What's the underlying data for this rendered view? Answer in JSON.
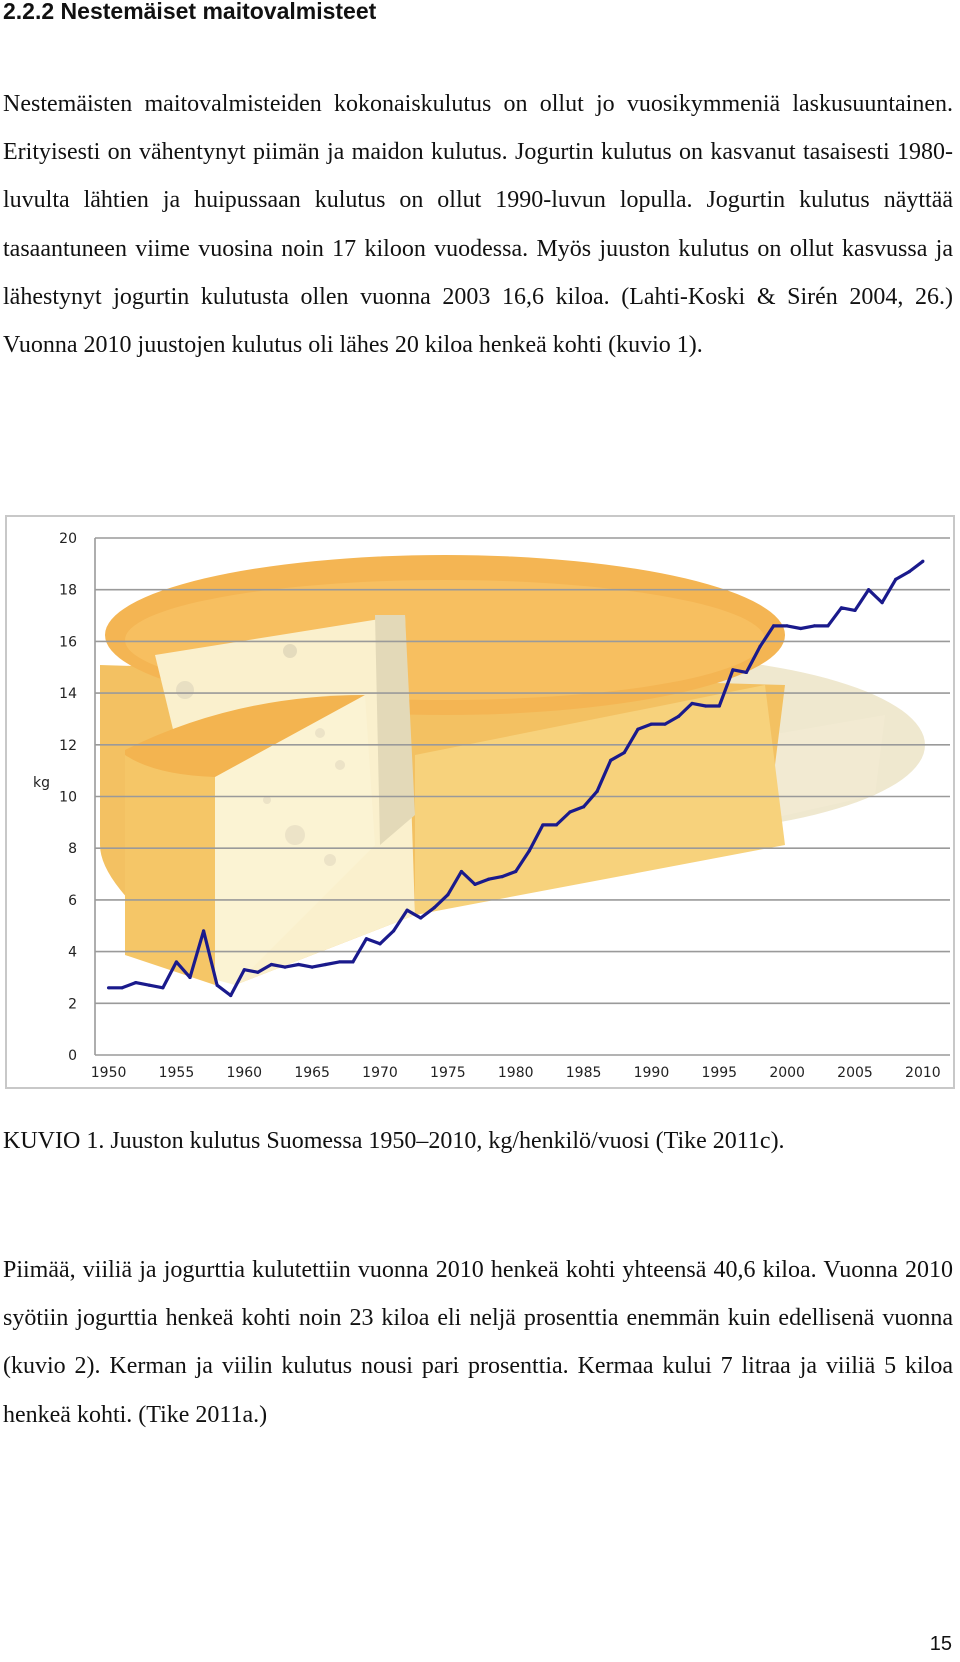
{
  "heading": "2.2.2 Nestemäiset maitovalmisteet",
  "paragraph1": "Nestemäisten maitovalmisteiden kokonaiskulutus on ollut jo vuosikymmeniä laskusuuntainen. Erityisesti on vähentynyt piimän ja maidon kulutus. Jogurtin kulutus on kasvanut tasaisesti 1980-luvulta lähtien ja huipussaan kulutus on ollut 1990-luvun lopulla. Jogurtin kulutus näyttää tasaantuneen viime vuosina noin 17 kiloon vuodessa. Myös juuston kulutus on ollut kasvussa ja lähestynyt jogurtin kulutusta ollen vuonna 2003 16,6 kiloa. (Lahti-Koski & Sirén 2004, 26.) Vuonna 2010 juustojen kulutus oli lähes 20 kiloa henkeä kohti (kuvio 1).",
  "caption": "KUVIO 1. Juuston kulutus Suomessa 1950–2010, kg/henkilö/vuosi (Tike 2011c).",
  "paragraph2": "Piimää, viiliä ja jogurttia kulutettiin vuonna 2010 henkeä kohti yhteensä 40,6 kiloa. Vuonna 2010 syötiin jogurttia henkeä kohti noin 23 kiloa eli neljä prosenttia enemmän kuin edellisenä vuonna (kuvio 2). Kerman ja viilin kulutus nousi pari prosenttia. Kermaa kului 7 litraa ja viiliä 5 kiloa henkeä kohti. (Tike 2011a.)",
  "page_number": "15",
  "chart_data": {
    "type": "line",
    "title": "",
    "xlabel": "",
    "ylabel": "kg",
    "xlim": [
      1949,
      2012
    ],
    "ylim": [
      0,
      20
    ],
    "x_ticks": [
      "1950",
      "1955",
      "1960",
      "1965",
      "1970",
      "1975",
      "1980",
      "1985",
      "1990",
      "1995",
      "2000",
      "2005",
      "2010"
    ],
    "y_ticks": [
      "0",
      "2",
      "4",
      "6",
      "8",
      "10",
      "12",
      "14",
      "16",
      "18",
      "20"
    ],
    "grid": true,
    "line_color": "#1a1a8c",
    "series": [
      {
        "name": "Juuston kulutus",
        "x": [
          1950,
          1951,
          1952,
          1953,
          1954,
          1955,
          1956,
          1957,
          1958,
          1959,
          1960,
          1961,
          1962,
          1963,
          1964,
          1965,
          1966,
          1967,
          1968,
          1969,
          1970,
          1971,
          1972,
          1973,
          1974,
          1975,
          1976,
          1977,
          1978,
          1979,
          1980,
          1981,
          1982,
          1983,
          1984,
          1985,
          1986,
          1987,
          1988,
          1989,
          1990,
          1991,
          1992,
          1993,
          1994,
          1995,
          1996,
          1997,
          1998,
          1999,
          2000,
          2001,
          2002,
          2003,
          2004,
          2005,
          2006,
          2007,
          2008,
          2009,
          2010
        ],
        "y": [
          2.6,
          2.6,
          2.8,
          2.7,
          2.6,
          3.6,
          3.0,
          4.8,
          2.7,
          2.3,
          3.3,
          3.2,
          3.5,
          3.4,
          3.5,
          3.4,
          3.5,
          3.6,
          3.6,
          4.5,
          4.3,
          4.8,
          5.6,
          5.3,
          5.7,
          6.2,
          7.1,
          6.6,
          6.8,
          6.9,
          7.1,
          7.9,
          8.9,
          8.9,
          9.4,
          9.6,
          10.2,
          11.4,
          11.7,
          12.6,
          12.8,
          12.8,
          13.1,
          13.6,
          13.5,
          13.5,
          14.9,
          14.8,
          15.8,
          16.6,
          16.6,
          16.5,
          16.6,
          16.6,
          17.3,
          17.2,
          18.0,
          17.5,
          18.4,
          18.7,
          19.1
        ]
      }
    ],
    "background_colors": {
      "cheese_top": "#f5b95a",
      "cheese_side": "#f3c465",
      "cheese_light": "#fae3a6",
      "wedge": "#fbf3d3",
      "shadow": "#ede4c8"
    }
  }
}
